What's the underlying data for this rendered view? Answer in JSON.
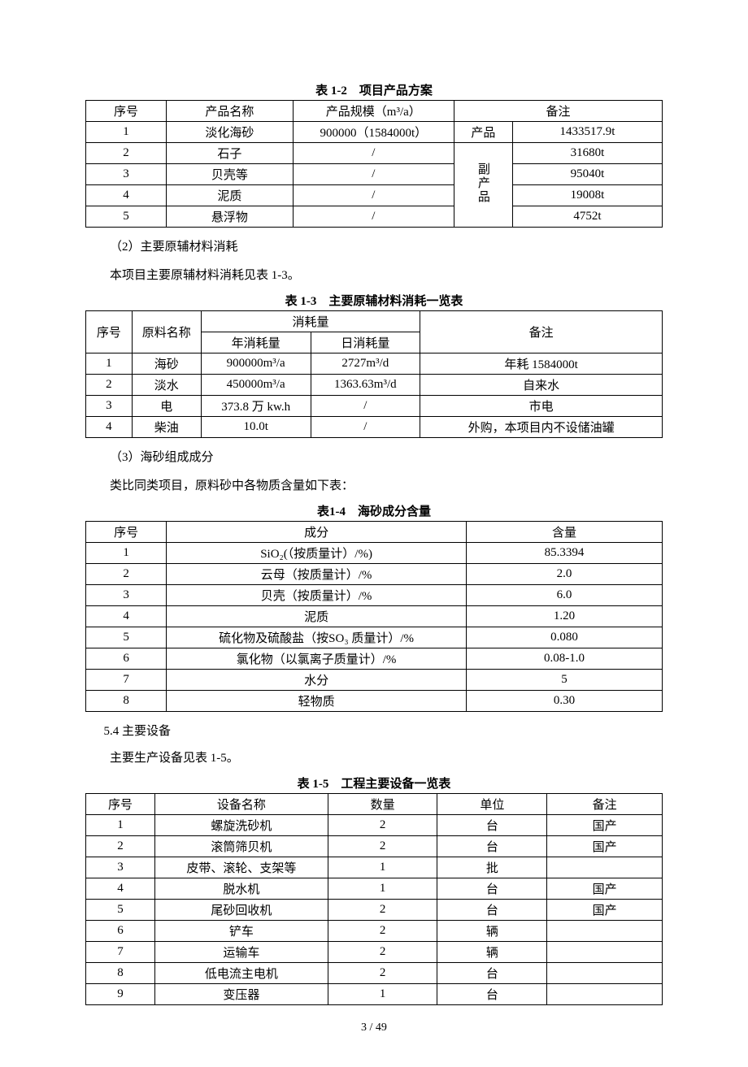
{
  "page_footer": "3 / 49",
  "table1": {
    "caption": "表 1-2　项目产品方案",
    "headers": [
      "序号",
      "产品名称",
      "产品规模（m³/a）",
      "备注"
    ],
    "category_product": "产品",
    "category_byproduct": "副产品",
    "rows": [
      {
        "no": "1",
        "name": "淡化海砂",
        "scale": "900000（1584000t）",
        "note": "1433517.9t"
      },
      {
        "no": "2",
        "name": "石子",
        "scale": "/",
        "note": "31680t"
      },
      {
        "no": "3",
        "name": "贝壳等",
        "scale": "/",
        "note": "95040t"
      },
      {
        "no": "4",
        "name": "泥质",
        "scale": "/",
        "note": "19008t"
      },
      {
        "no": "5",
        "name": "悬浮物",
        "scale": "/",
        "note": "4752t"
      }
    ]
  },
  "p1": "（2）主要原辅材料消耗",
  "p2": "本项目主要原辅材料消耗见表 1-3。",
  "table2": {
    "caption": "表 1-3　主要原辅材料消耗一览表",
    "h_no": "序号",
    "h_name": "原料名称",
    "h_consume": "消耗量",
    "h_year": "年消耗量",
    "h_day": "日消耗量",
    "h_note": "备注",
    "rows": [
      {
        "no": "1",
        "name": "海砂",
        "year": "900000m³/a",
        "day": "2727m³/d",
        "note": "年耗 1584000t"
      },
      {
        "no": "2",
        "name": "淡水",
        "year": "450000m³/a",
        "day": "1363.63m³/d",
        "note": "自来水"
      },
      {
        "no": "3",
        "name": "电",
        "year": "373.8 万 kw.h",
        "day": "/",
        "note": "市电"
      },
      {
        "no": "4",
        "name": "柴油",
        "year": "10.0t",
        "day": "/",
        "note": "外购，本项目内不设储油罐"
      }
    ]
  },
  "p3": "（3）海砂组成成分",
  "p4": "类比同类项目，原料砂中各物质含量如下表：",
  "table3": {
    "caption": "表1-4　海砂成分含量",
    "headers": [
      "序号",
      "成分",
      "含量"
    ],
    "rows": [
      {
        "no": "1",
        "comp": "SiO₂(（按质量计）/%)",
        "amt": "85.3394"
      },
      {
        "no": "2",
        "comp": "云母（按质量计）/%",
        "amt": "2.0"
      },
      {
        "no": "3",
        "comp": "贝壳（按质量计）/%",
        "amt": "6.0"
      },
      {
        "no": "4",
        "comp": "泥质",
        "amt": "1.20"
      },
      {
        "no": "5",
        "comp": "硫化物及硫酸盐（按SO₃ 质量计）/%",
        "amt": "0.080"
      },
      {
        "no": "6",
        "comp": "氯化物（以氯离子质量计）/%",
        "amt": "0.08-1.0"
      },
      {
        "no": "7",
        "comp": "水分",
        "amt": "5"
      },
      {
        "no": "8",
        "comp": "轻物质",
        "amt": "0.30"
      }
    ]
  },
  "p5": "5.4 主要设备",
  "p6": "主要生产设备见表 1-5。",
  "table4": {
    "caption": "表 1-5　工程主要设备一览表",
    "headers": [
      "序号",
      "设备名称",
      "数量",
      "单位",
      "备注"
    ],
    "rows": [
      {
        "no": "1",
        "name": "螺旋洗砂机",
        "qty": "2",
        "unit": "台",
        "note": "国产"
      },
      {
        "no": "2",
        "name": "滚筒筛贝机",
        "qty": "2",
        "unit": "台",
        "note": "国产"
      },
      {
        "no": "3",
        "name": "皮带、滚轮、支架等",
        "qty": "1",
        "unit": "批",
        "note": ""
      },
      {
        "no": "4",
        "name": "脱水机",
        "qty": "1",
        "unit": "台",
        "note": "国产"
      },
      {
        "no": "5",
        "name": "尾砂回收机",
        "qty": "2",
        "unit": "台",
        "note": "国产"
      },
      {
        "no": "6",
        "name": "铲车",
        "qty": "2",
        "unit": "辆",
        "note": ""
      },
      {
        "no": "7",
        "name": "运输车",
        "qty": "2",
        "unit": "辆",
        "note": ""
      },
      {
        "no": "8",
        "name": "低电流主电机",
        "qty": "2",
        "unit": "台",
        "note": ""
      },
      {
        "no": "9",
        "name": "变压器",
        "qty": "1",
        "unit": "台",
        "note": ""
      }
    ]
  }
}
